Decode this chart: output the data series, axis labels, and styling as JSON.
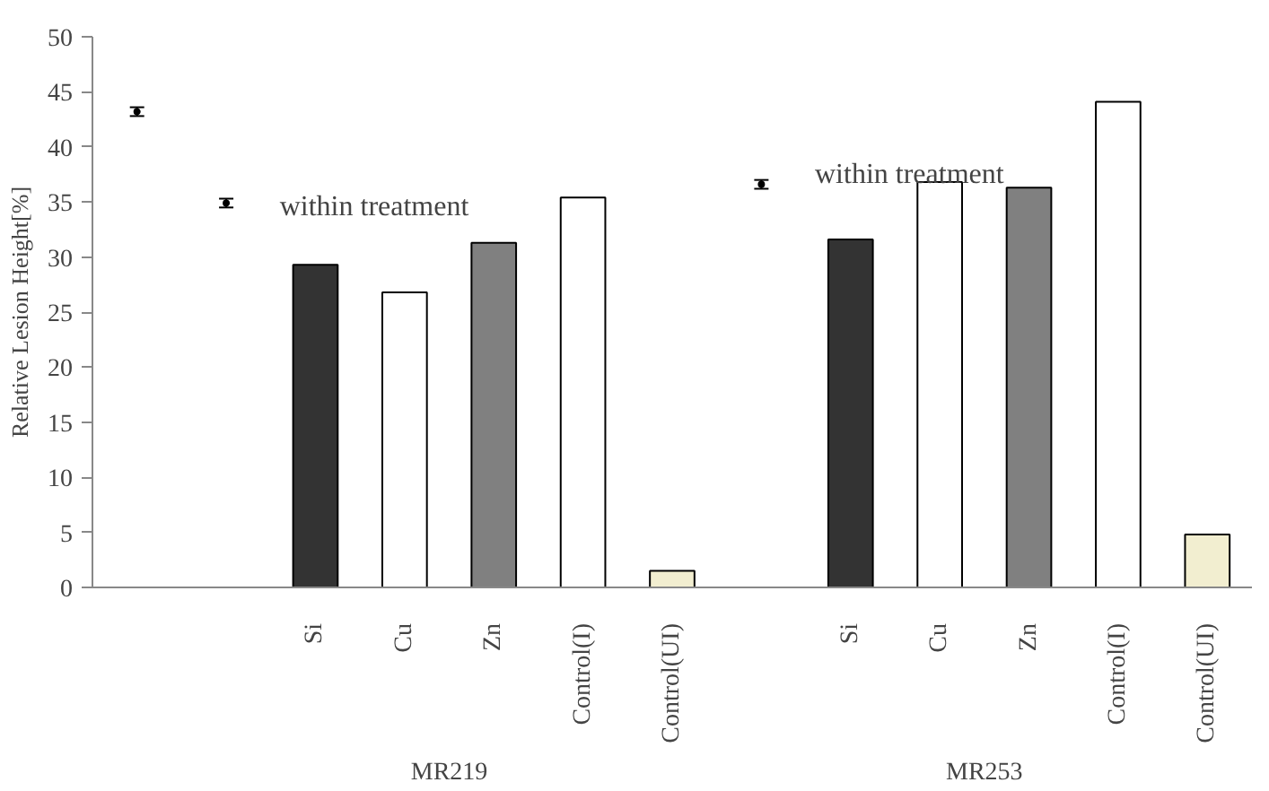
{
  "chart_data": {
    "type": "bar",
    "ylabel": "Relative Lesion Height[%]",
    "categories": [
      null,
      null,
      "Si",
      "Cu",
      "Zn",
      "Control(I)",
      "Control(UI)",
      null,
      "Si",
      "Cu",
      "Zn",
      "Control(I)",
      "Control(UI)"
    ],
    "series": [
      {
        "values": [
          null,
          null,
          29.3,
          26.8,
          31.3,
          35.4,
          1.5,
          null,
          31.6,
          36.8,
          36.3,
          44.1,
          4.8
        ],
        "colors": [
          null,
          null,
          "#333333",
          "#ffffff",
          "#808080",
          "#ffffff",
          "#f2eed0",
          null,
          "#333333",
          "#ffffff",
          "#808080",
          "#ffffff",
          "#f2eed0"
        ]
      },
      {
        "type": "scatter",
        "marker": "circle",
        "color": "#000000",
        "values": [
          43.2,
          34.9,
          null,
          null,
          null,
          null,
          null,
          36.6,
          null,
          null,
          null,
          null,
          null
        ],
        "errors": [
          0.4,
          0.4,
          null,
          null,
          null,
          null,
          null,
          0.4,
          null,
          null,
          null,
          null,
          null
        ]
      }
    ],
    "ylim": [
      0,
      50
    ],
    "yticks": [
      0,
      5,
      10,
      15,
      20,
      25,
      30,
      35,
      40,
      45,
      50
    ],
    "grid": false,
    "annotations": [
      "within treatment",
      "within treatment",
      "MR219",
      "MR253"
    ]
  }
}
